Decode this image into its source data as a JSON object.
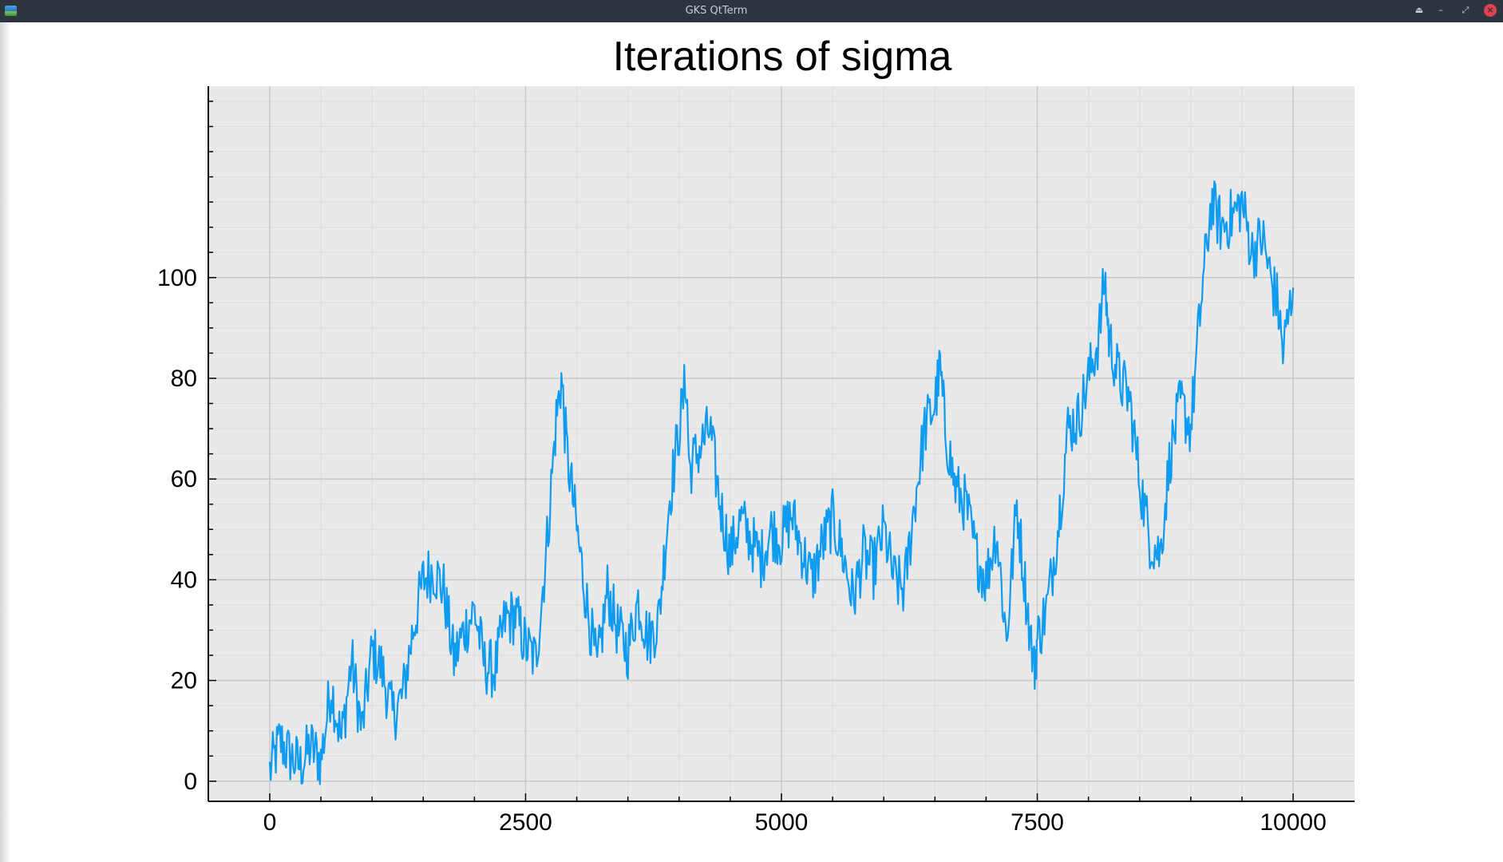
{
  "window": {
    "title": "GKS QtTerm"
  },
  "colors": {
    "series": "#0e9bf0",
    "plot_bg": "#e9e9e9",
    "titlebar_bg": "#2e3440"
  },
  "chart_data": {
    "type": "line",
    "title": "Iterations of sigma",
    "xlabel": "",
    "ylabel": "",
    "xlim": [
      -600,
      10600
    ],
    "ylim": [
      -4,
      138
    ],
    "grid": true,
    "xticks": [
      0,
      2500,
      5000,
      7500,
      10000
    ],
    "xtick_labels": [
      "0",
      "2500",
      "5000",
      "7500",
      "10000"
    ],
    "yticks": [
      0,
      20,
      40,
      60,
      80,
      100
    ],
    "ytick_labels": [
      "0",
      "20",
      "40",
      "60",
      "80",
      "100"
    ],
    "series": [
      {
        "x": [
          0,
          100,
          200,
          300,
          400,
          500,
          600,
          700,
          800,
          900,
          1000,
          1100,
          1200,
          1300,
          1400,
          1500,
          1600,
          1700,
          1800,
          1900,
          2000,
          2100,
          2200,
          2300,
          2400,
          2500,
          2600,
          2700,
          2800,
          2850,
          2900,
          3000,
          3100,
          3200,
          3300,
          3400,
          3500,
          3600,
          3700,
          3800,
          3900,
          4000,
          4070,
          4100,
          4200,
          4300,
          4400,
          4500,
          4600,
          4700,
          4800,
          4900,
          5000,
          5100,
          5200,
          5300,
          5400,
          5500,
          5600,
          5700,
          5800,
          5900,
          6000,
          6100,
          6200,
          6300,
          6400,
          6500,
          6550,
          6600,
          6700,
          6800,
          6900,
          7000,
          7100,
          7200,
          7300,
          7400,
          7470,
          7500,
          7600,
          7700,
          7800,
          7900,
          8000,
          8100,
          8160,
          8200,
          8300,
          8400,
          8500,
          8600,
          8700,
          8800,
          8900,
          9000,
          9100,
          9200,
          9300,
          9400,
          9500,
          9600,
          9700,
          9800,
          9850,
          9900,
          10000
        ],
        "y": [
          2,
          8,
          5,
          3,
          7,
          4,
          19,
          8,
          24,
          10,
          26,
          22,
          13,
          17,
          30,
          40,
          42,
          38,
          24,
          30,
          34,
          23,
          22,
          32,
          33,
          27,
          24,
          45,
          72,
          80,
          66,
          50,
          35,
          22,
          38,
          30,
          26,
          36,
          28,
          32,
          55,
          70,
          80,
          62,
          66,
          70,
          55,
          45,
          52,
          48,
          44,
          50,
          48,
          53,
          46,
          40,
          47,
          52,
          45,
          36,
          45,
          42,
          50,
          40,
          38,
          55,
          70,
          75,
          82,
          70,
          58,
          55,
          45,
          40,
          50,
          28,
          55,
          35,
          22,
          28,
          35,
          50,
          70,
          72,
          80,
          88,
          100,
          88,
          80,
          76,
          60,
          48,
          45,
          65,
          75,
          70,
          95,
          115,
          110,
          112,
          115,
          105,
          108,
          98,
          95,
          85,
          98
        ]
      }
    ]
  }
}
